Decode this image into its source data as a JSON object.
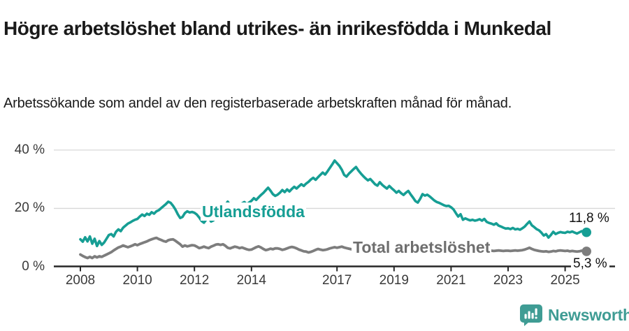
{
  "title": "Högre arbetslöshet bland utrikes- än inrikesfödda i Munkedal",
  "subtitle": "Arbetssökande som andel av den registerbaserade arbetskraften månad för månad.",
  "footer": {
    "brand": "Newsworthy",
    "logo_icon": "bar-chart-speech-bubble-icon",
    "brand_color": "#3f9c94"
  },
  "colors": {
    "accent_teal": "#169e94",
    "series_gray": "#7d7d7d",
    "grid": "#d8d8d8",
    "axis": "#262626",
    "text": "#1a1a1a"
  },
  "chart_data": {
    "type": "line",
    "unit": "%",
    "x_start": "2008-01",
    "x_end": "2025-10",
    "points_per_year": 12,
    "ylim": [
      0,
      40
    ],
    "grid": "horizontal",
    "y_ticks": [
      {
        "value": 0,
        "label": "0 %"
      },
      {
        "value": 20,
        "label": "20 %"
      },
      {
        "value": 40,
        "label": "40 %"
      }
    ],
    "x_tick_years": [
      2008,
      2010,
      2012,
      2014,
      2017,
      2019,
      2021,
      2023,
      2025
    ],
    "series": [
      {
        "name": "Utlandsfödda",
        "label": "Utlandsfödda",
        "color": "#169e94",
        "label_color": "#169e94",
        "end_label": "11,8 %",
        "end_value": 11.8,
        "values": [
          9.4,
          8.6,
          10.1,
          8.7,
          10.4,
          7.9,
          9.6,
          7.1,
          8.8,
          7.5,
          8.3,
          9.6,
          10.9,
          11.2,
          10.4,
          12.0,
          12.8,
          12.2,
          13.4,
          14.1,
          14.8,
          15.2,
          15.7,
          16.1,
          16.4,
          17.2,
          17.9,
          17.4,
          18.2,
          17.8,
          18.7,
          18.2,
          19.0,
          19.4,
          20.1,
          20.8,
          21.5,
          22.3,
          21.9,
          20.9,
          19.6,
          18.0,
          16.7,
          17.1,
          18.4,
          19.0,
          18.6,
          18.8,
          18.5,
          17.9,
          16.9,
          15.7,
          15.1,
          16.2,
          16.9,
          15.5,
          15.9,
          16.8,
          17.6,
          18.5,
          19.6,
          21.1,
          22.3,
          21.2,
          20.1,
          19.5,
          20.3,
          21.0,
          21.7,
          22.2,
          21.4,
          22.0,
          22.6,
          23.5,
          22.9,
          23.8,
          24.6,
          25.3,
          26.2,
          27.1,
          26.1,
          24.9,
          24.3,
          24.7,
          25.4,
          26.3,
          25.6,
          26.5,
          25.8,
          26.7,
          27.4,
          26.8,
          27.6,
          28.3,
          27.7,
          28.5,
          29.1,
          29.9,
          30.5,
          29.8,
          30.7,
          31.5,
          32.3,
          31.6,
          32.7,
          33.9,
          35.1,
          36.4,
          35.5,
          34.6,
          33.3,
          31.5,
          30.9,
          31.9,
          32.7,
          33.5,
          34.2,
          33.0,
          32.0,
          31.1,
          30.3,
          29.6,
          30.1,
          29.2,
          28.3,
          27.8,
          29.0,
          28.1,
          27.4,
          26.8,
          27.7,
          26.9,
          26.2,
          25.4,
          26.0,
          25.2,
          24.6,
          25.4,
          26.0,
          24.8,
          23.7,
          22.5,
          22.0,
          23.3,
          24.9,
          24.4,
          24.7,
          24.1,
          23.4,
          22.7,
          22.2,
          21.9,
          21.5,
          21.1,
          20.8,
          20.9,
          20.4,
          19.7,
          18.4,
          17.2,
          18.0,
          16.1,
          16.6,
          16.2,
          15.9,
          16.1,
          15.8,
          16.0,
          16.3,
          15.8,
          16.4,
          15.4,
          15.0,
          14.8,
          14.4,
          14.9,
          14.1,
          13.8,
          13.4,
          13.1,
          13.2,
          12.9,
          13.3,
          12.8,
          13.0,
          12.7,
          13.2,
          13.8,
          14.7,
          15.5,
          14.2,
          13.6,
          12.9,
          12.5,
          11.7,
          10.7,
          11.2,
          10.0,
          10.9,
          12.0,
          11.2,
          11.6,
          11.9,
          11.7,
          11.6,
          12.0,
          11.8,
          12.1,
          11.7,
          11.4,
          11.8,
          12.2,
          11.9,
          11.8
        ]
      },
      {
        "name": "Total arbetslöshet",
        "label": "Total arbetslöshet",
        "color": "#7d7d7d",
        "label_color": "#6e6e6e",
        "end_label": "5,3 %",
        "end_value": 5.3,
        "values": [
          4.2,
          3.7,
          3.3,
          3.0,
          3.4,
          3.0,
          3.6,
          3.2,
          3.6,
          3.4,
          3.8,
          4.2,
          4.6,
          5.0,
          5.6,
          6.1,
          6.6,
          6.9,
          7.3,
          7.0,
          6.7,
          7.0,
          7.3,
          7.7,
          7.4,
          7.8,
          8.1,
          8.4,
          8.7,
          9.1,
          9.4,
          9.7,
          9.9,
          9.5,
          9.2,
          8.8,
          8.6,
          9.1,
          9.3,
          9.4,
          8.9,
          8.3,
          7.7,
          6.9,
          7.3,
          7.0,
          7.2,
          7.4,
          7.3,
          6.9,
          6.4,
          6.6,
          6.9,
          6.6,
          6.4,
          6.9,
          7.2,
          7.6,
          7.7,
          7.5,
          7.7,
          7.2,
          6.5,
          6.3,
          6.6,
          6.9,
          6.7,
          6.4,
          6.6,
          6.3,
          6.0,
          5.8,
          5.9,
          6.3,
          6.7,
          7.0,
          6.6,
          6.1,
          5.7,
          5.9,
          6.2,
          6.0,
          6.3,
          6.3,
          6.1,
          5.8,
          6.0,
          6.3,
          6.6,
          6.8,
          6.6,
          6.3,
          5.9,
          5.6,
          5.3,
          5.2,
          4.9,
          5.1,
          5.4,
          5.8,
          6.1,
          5.9,
          5.7,
          5.8,
          6.0,
          6.3,
          6.5,
          6.7,
          6.5,
          6.7,
          6.9,
          6.6,
          6.4,
          6.2,
          6.0,
          5.9,
          5.8,
          5.7,
          5.6,
          5.6,
          5.5,
          5.4,
          5.3,
          5.2,
          5.2,
          5.1,
          5.0,
          5.0,
          4.9,
          4.9,
          5.0,
          5.1,
          5.1,
          5.2,
          5.2,
          5.3,
          5.3,
          5.4,
          5.4,
          5.5,
          5.5,
          5.6,
          5.7,
          5.9,
          6.2,
          6.5,
          6.9,
          7.2,
          7.4,
          7.5,
          7.4,
          7.3,
          7.2,
          7.0,
          6.9,
          6.8,
          6.7,
          6.6,
          6.5,
          6.4,
          6.2,
          6.1,
          6.0,
          5.9,
          5.8,
          5.8,
          5.7,
          5.7,
          5.7,
          5.6,
          5.6,
          5.7,
          5.6,
          5.5,
          5.4,
          5.5,
          5.6,
          5.5,
          5.4,
          5.5,
          5.5,
          5.4,
          5.5,
          5.6,
          5.5,
          5.6,
          5.7,
          5.9,
          6.2,
          6.5,
          6.1,
          5.8,
          5.6,
          5.4,
          5.3,
          5.2,
          5.3,
          5.1,
          5.2,
          5.4,
          5.3,
          5.5,
          5.6,
          5.5,
          5.4,
          5.5,
          5.3,
          5.4,
          5.3,
          5.2,
          5.3,
          5.5,
          5.4,
          5.3
        ]
      }
    ]
  }
}
